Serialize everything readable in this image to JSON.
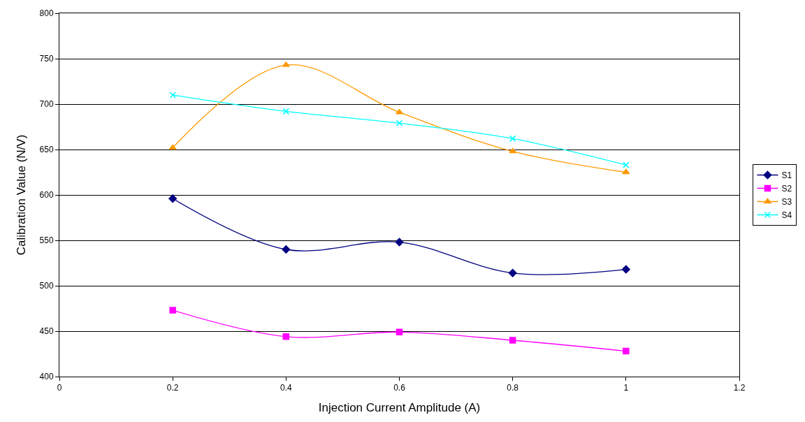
{
  "chart_data": {
    "type": "line",
    "xlabel": "Injection Current Amplitude (A)",
    "ylabel": "Calibration Value (N/V)",
    "x": [
      0.2,
      0.4,
      0.6,
      0.8,
      1.0
    ],
    "series": [
      {
        "name": "S1",
        "color": "#000080",
        "marker": "diamond",
        "values": [
          596,
          540,
          548,
          514,
          518
        ]
      },
      {
        "name": "S2",
        "color": "#ff00ff",
        "marker": "square",
        "values": [
          473,
          444,
          449,
          440,
          428
        ]
      },
      {
        "name": "S3",
        "color": "#ff9900",
        "marker": "triangle",
        "values": [
          652,
          743,
          691,
          648,
          625
        ]
      },
      {
        "name": "S4",
        "color": "#00ffff",
        "marker": "cross",
        "values": [
          710,
          692,
          679,
          662,
          633
        ]
      }
    ],
    "xlim": [
      0,
      1.2
    ],
    "xticks": [
      0,
      0.2,
      0.4,
      0.6,
      0.8,
      1,
      1.2
    ],
    "ylim": [
      400,
      800
    ],
    "yticks": [
      400,
      450,
      500,
      550,
      600,
      650,
      700,
      750,
      800
    ],
    "grid": "y",
    "legend": "right",
    "line_style": "solid"
  }
}
